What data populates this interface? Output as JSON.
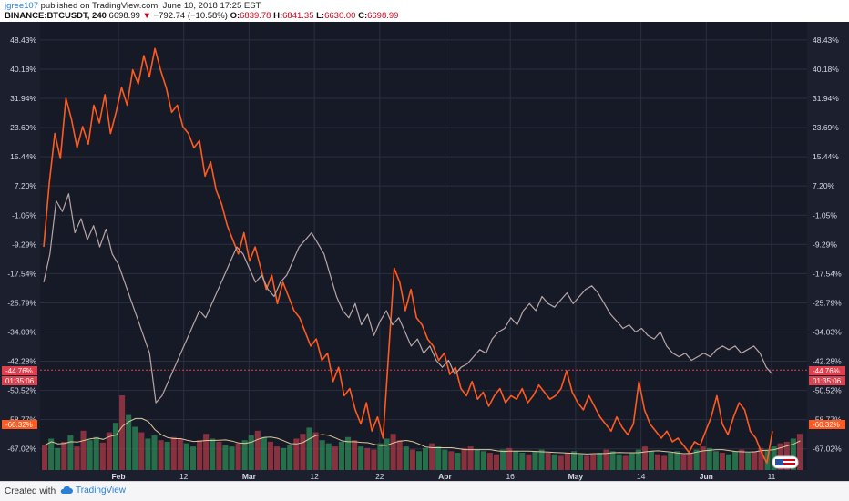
{
  "header": {
    "username": "jgree107",
    "published_text": "published on TradingView.com, June 10, 2018 17:25 EST",
    "symbol": "BINANCE:BTCUSDT, 240",
    "last_price": "6698.99",
    "change": "−792.74 (−10.58%)",
    "o_label": "O:",
    "o_value": "6839.78",
    "h_label": "H:",
    "h_value": "6841.35",
    "l_label": "L:",
    "l_value": "6630.00",
    "c_label": "C:",
    "c_value": "6698.99"
  },
  "footer": {
    "created_with": "Created with",
    "brand": "TradingView"
  },
  "price_tags": {
    "current_pct": "-44.76%",
    "countdown": "01:35:06",
    "orange_pct": "-60.32%"
  },
  "chart_data": {
    "type": "line",
    "y_axis_labels": [
      "48.43%",
      "40.18%",
      "31.94%",
      "23.69%",
      "15.44%",
      "7.20%",
      "-1.05%",
      "-9.29%",
      "-17.54%",
      "-25.79%",
      "-34.03%",
      "-42.28%",
      "-50.52%",
      "-58.77%",
      "-67.02%"
    ],
    "y_unit": "percent change",
    "ylim": [
      -73,
      52
    ],
    "x_axis_labels": [
      {
        "label": "Feb",
        "bold": true
      },
      {
        "label": "12",
        "bold": false
      },
      {
        "label": "Mar",
        "bold": true
      },
      {
        "label": "12",
        "bold": false
      },
      {
        "label": "22",
        "bold": false
      },
      {
        "label": "Apr",
        "bold": true
      },
      {
        "label": "16",
        "bold": false
      },
      {
        "label": "May",
        "bold": true
      },
      {
        "label": "14",
        "bold": false
      },
      {
        "label": "Jun",
        "bold": true
      },
      {
        "label": "11",
        "bold": false
      }
    ],
    "series": [
      {
        "color": "#ff5a1f",
        "values": [
          -10,
          8,
          22,
          15,
          32,
          26,
          18,
          24,
          19,
          30,
          25,
          33,
          22,
          28,
          35,
          30,
          40,
          36,
          44,
          38,
          46,
          40,
          35,
          28,
          30,
          24,
          22,
          18,
          20,
          10,
          14,
          6,
          2,
          -4,
          -8,
          -12,
          -6,
          -14,
          -10,
          -16,
          -22,
          -18,
          -26,
          -20,
          -24,
          -28,
          -30,
          -34,
          -38,
          -36,
          -42,
          -40,
          -48,
          -44,
          -52,
          -50,
          -56,
          -60,
          -54,
          -62,
          -58,
          -64,
          -40,
          -16,
          -20,
          -28,
          -22,
          -30,
          -32,
          -36,
          -38,
          -42,
          -40,
          -46,
          -44,
          -50,
          -52,
          -48,
          -53,
          -51,
          -55,
          -52,
          -50,
          -54,
          -52,
          -53,
          -50,
          -54,
          -52,
          -49,
          -51,
          -53,
          -52,
          -50,
          -45,
          -51,
          -54,
          -56,
          -52,
          -55,
          -58,
          -60,
          -62,
          -58,
          -61,
          -63,
          -60,
          -48,
          -56,
          -60,
          -62,
          -64,
          -62,
          -65,
          -64,
          -66,
          -68,
          -65,
          -66,
          -62,
          -58,
          -52,
          -60,
          -63,
          -58,
          -54,
          -56,
          -62,
          -64,
          -68,
          -71,
          -62
        ]
      },
      {
        "color": "#b9a6a6",
        "values": [
          -20,
          -12,
          3,
          0,
          5,
          -6,
          -2,
          -8,
          -4,
          -10,
          -5,
          -12,
          -15,
          -20,
          -25,
          -30,
          -35,
          -40,
          -54,
          -52,
          -48,
          -44,
          -40,
          -36,
          -32,
          -28,
          -30,
          -26,
          -22,
          -18,
          -14,
          -10,
          -12,
          -16,
          -20,
          -18,
          -22,
          -24,
          -20,
          -18,
          -14,
          -10,
          -8,
          -6,
          -9,
          -12,
          -18,
          -24,
          -28,
          -30,
          -26,
          -32,
          -29,
          -35,
          -31,
          -28,
          -32,
          -30,
          -34,
          -38,
          -36,
          -40,
          -38,
          -42,
          -44,
          -42,
          -46,
          -44,
          -43,
          -41,
          -39,
          -40,
          -36,
          -34,
          -33,
          -30,
          -32,
          -28,
          -26,
          -28,
          -24,
          -26,
          -27,
          -25,
          -23,
          -26,
          -24,
          -22,
          -21,
          -23,
          -26,
          -29,
          -31,
          -33,
          -32,
          -34,
          -33,
          -35,
          -36,
          -34,
          -38,
          -40,
          -41,
          -40,
          -42,
          -41,
          -40,
          -41,
          -39,
          -38,
          -39,
          -38,
          -40,
          -39,
          -38,
          -40,
          -44,
          -46
        ]
      }
    ],
    "volume_series": {
      "colors": {
        "up": "#2e8b57",
        "down": "#b03a48",
        "ma": "#d8c89a"
      },
      "values": [
        32,
        40,
        28,
        36,
        44,
        30,
        50,
        38,
        42,
        35,
        48,
        60,
        95,
        70,
        55,
        48,
        40,
        44,
        38,
        36,
        42,
        40,
        34,
        30,
        38,
        46,
        40,
        36,
        32,
        30,
        34,
        38,
        44,
        50,
        42,
        36,
        30,
        28,
        32,
        40,
        46,
        54,
        48,
        38,
        34,
        30,
        36,
        42,
        38,
        30,
        28,
        26,
        34,
        40,
        46,
        38,
        30,
        26,
        24,
        28,
        34,
        30,
        26,
        24,
        22,
        28,
        30,
        26,
        24,
        22,
        20,
        26,
        28,
        24,
        22,
        20,
        24,
        26,
        22,
        20,
        18,
        22,
        24,
        20,
        18,
        20,
        22,
        26,
        24,
        20,
        18,
        22,
        26,
        30,
        24,
        20,
        18,
        22,
        24,
        20,
        22,
        26,
        30,
        28,
        24,
        22,
        20,
        24,
        26,
        22,
        24,
        28,
        26,
        30,
        34,
        36,
        40,
        46
      ]
    }
  }
}
